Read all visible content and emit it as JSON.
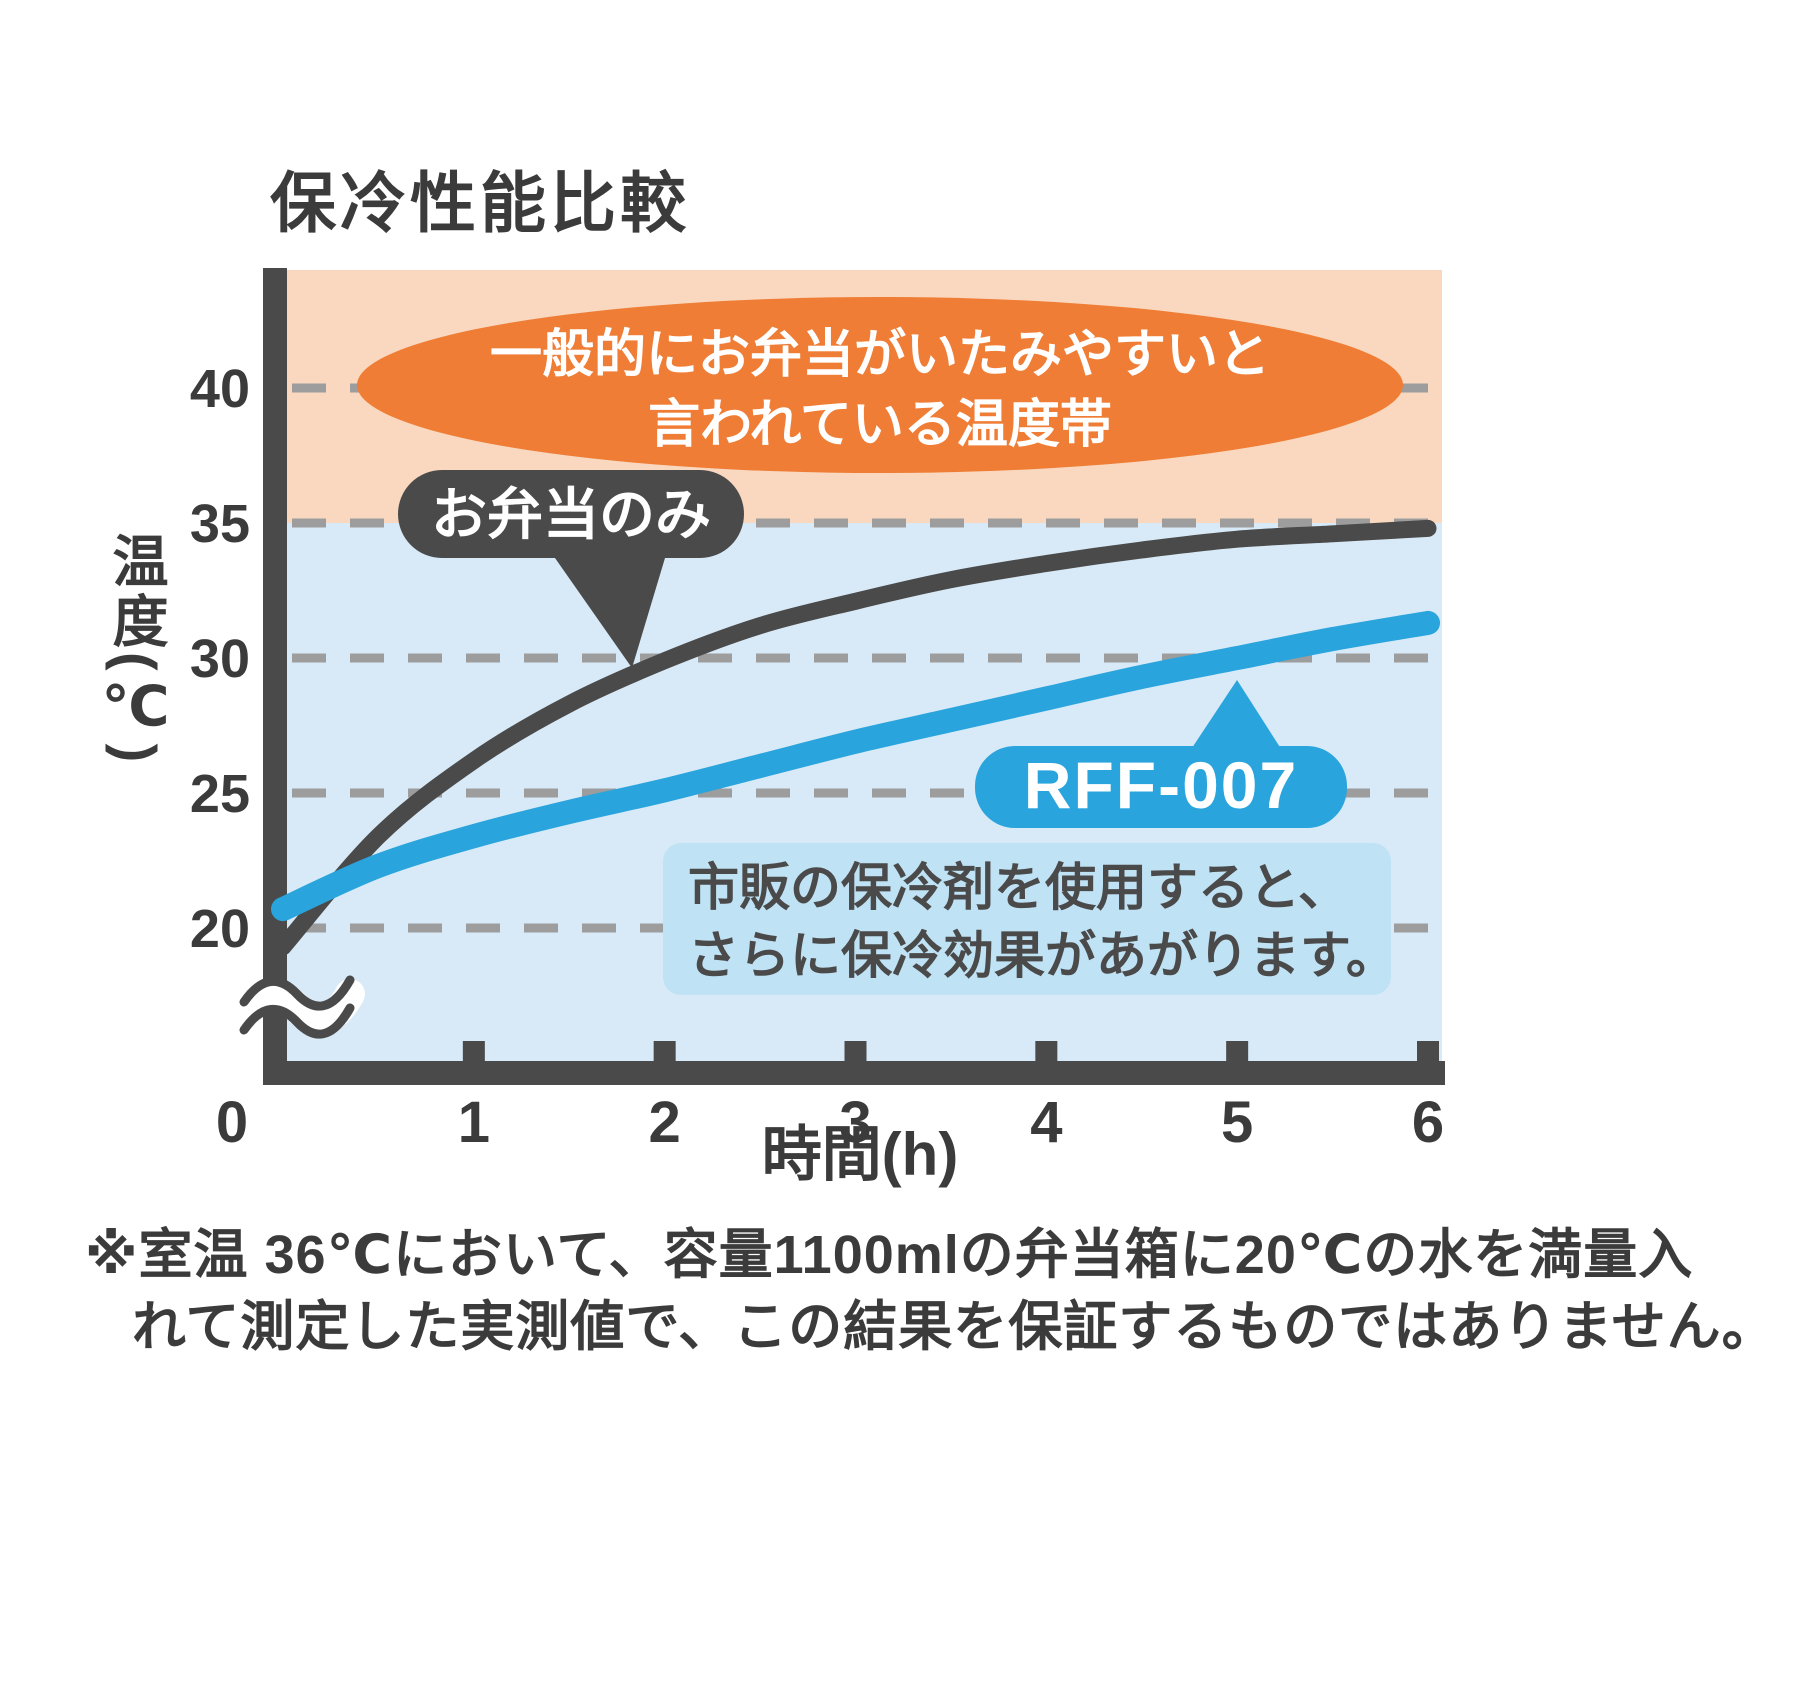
{
  "title": "保冷性能比較",
  "labels": {
    "danger_line1": "一般的にお弁当がいたみやすいと",
    "danger_line2": "言われている温度帯",
    "note_line1": "市販の保冷剤を使用すると、",
    "note_line2": "さらに保冷効果があがります。",
    "xlabel": "時間(h)",
    "ylabel": "温度(℃)"
  },
  "footnote": {
    "line1": "※室温 36℃において、容量1100mlの弁当箱に20℃の水を満量入",
    "line2": "れて測定した実測値で、この結果を保証するものではありません。"
  },
  "colors": {
    "dark": "#4a4a4a",
    "blue": "#29a4dc",
    "orange": "#ef7d35",
    "band_orange": "#f9d8bf",
    "band_blue": "#d8eaf7",
    "note_bg": "#bfe2f5",
    "grid": "#9d9d9d",
    "text": "#3b3b3b"
  },
  "chart_data": {
    "type": "line",
    "title": "保冷性能比較",
    "xlabel": "時間(h)",
    "ylabel": "温度(℃)",
    "x_ticks": [
      0,
      1,
      2,
      3,
      4,
      5,
      6
    ],
    "y_ticks": [
      20,
      25,
      30,
      35,
      40
    ],
    "xlim": [
      0,
      6
    ],
    "ylim": [
      20,
      44
    ],
    "y_axis_break": "below 20°C",
    "grid": "horizontal dashed",
    "zones": [
      {
        "name": "spoilage-zone",
        "from_temp": 35,
        "to_temp": 44,
        "annotation": "一般的にお弁当がいたみやすいと言われている温度帯"
      },
      {
        "name": "cool-zone",
        "from_temp": 20,
        "to_temp": 35
      }
    ],
    "x": [
      0,
      0.5,
      1,
      1.5,
      2,
      2.5,
      3,
      3.5,
      4,
      4.5,
      5,
      5.5,
      6
    ],
    "series": [
      {
        "name": "お弁当のみ",
        "color": "#4a4a4a",
        "values": [
          19.3,
          23.4,
          26.2,
          28.3,
          29.9,
          31.2,
          32.1,
          32.9,
          33.5,
          34.0,
          34.4,
          34.6,
          34.8
        ]
      },
      {
        "name": "RFF-007",
        "color": "#29a4dc",
        "values": [
          20.7,
          22.3,
          23.4,
          24.3,
          25.1,
          26.0,
          26.9,
          27.7,
          28.5,
          29.3,
          30.0,
          30.7,
          31.3
        ]
      }
    ],
    "annotation_note": "市販の保冷剤を使用すると、さらに保冷効果があがります。"
  }
}
